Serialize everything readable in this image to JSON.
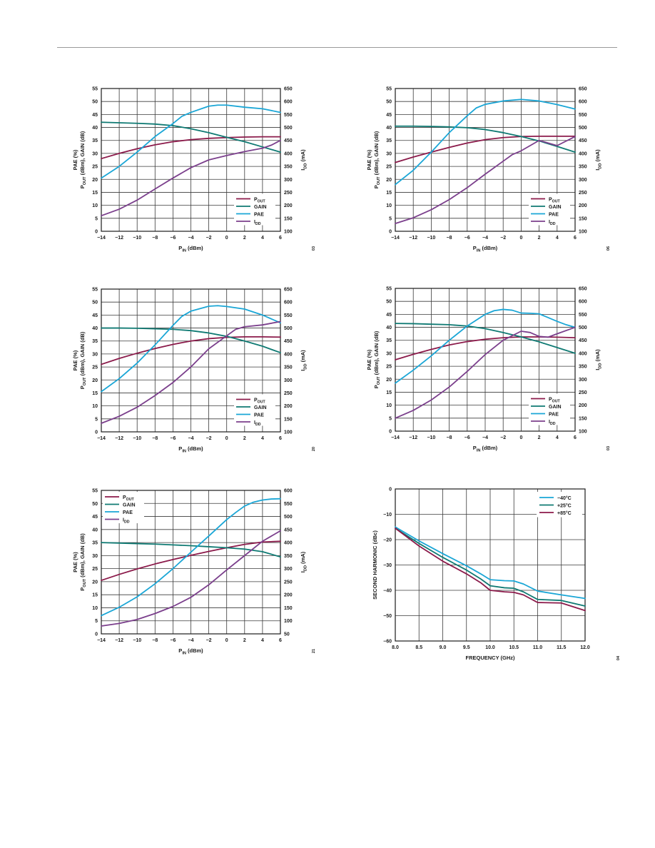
{
  "colors": {
    "pout": "#8b1a4a",
    "gain": "#0f7a73",
    "pae": "#1aa6d6",
    "idd": "#7b3f8c",
    "minus40": "#1aa6d6",
    "plus25": "#0f7a73",
    "plus85": "#8b1a4a"
  },
  "chart_data": [
    {
      "type": "line",
      "ylabel_left_html": "PAE (%)<br>P<sub>OUT</sub> (dBm), GAIN (dB)",
      "ylabel_right": "IDD (mA)",
      "xlabel": "PIN (dBm)",
      "xlim": [
        -14,
        6
      ],
      "xticks": [
        -14,
        -12,
        -10,
        -8,
        -6,
        -4,
        -2,
        0,
        2,
        4,
        6
      ],
      "ylim_left": [
        0,
        55
      ],
      "yticks_left": [
        0,
        5,
        10,
        15,
        20,
        25,
        30,
        35,
        40,
        45,
        50,
        55
      ],
      "ylim_right": [
        100,
        650
      ],
      "yticks_right": [
        100,
        150,
        200,
        250,
        300,
        350,
        400,
        450,
        500,
        550,
        600,
        650
      ],
      "legend": {
        "position": "bottom-right",
        "entries": [
          "POUT",
          "GAIN",
          "PAE",
          "IDD"
        ]
      },
      "side_label": "03",
      "series": [
        {
          "name": "POUT",
          "axis": "left",
          "color": "pout",
          "x": [
            -14,
            -12,
            -10,
            -8,
            -6,
            -4,
            -2,
            0,
            2,
            4,
            6
          ],
          "y": [
            28,
            30,
            31.8,
            33.3,
            34.5,
            35.3,
            35.8,
            36.1,
            36.3,
            36.4,
            36.4
          ]
        },
        {
          "name": "GAIN",
          "axis": "left",
          "color": "gain",
          "x": [
            -14,
            -12,
            -10,
            -8,
            -6,
            -4,
            -2,
            0,
            2,
            4,
            6
          ],
          "y": [
            42,
            41.8,
            41.6,
            41.3,
            40.7,
            39.5,
            38,
            36.2,
            34.5,
            32.5,
            30.5
          ]
        },
        {
          "name": "PAE",
          "axis": "left",
          "color": "pae",
          "x": [
            -14,
            -12,
            -10,
            -8,
            -6,
            -5,
            -4,
            -2,
            -1,
            0,
            2,
            4,
            6
          ],
          "y": [
            20.5,
            25,
            30.5,
            36.5,
            41.5,
            44.3,
            45.8,
            48.2,
            48.6,
            48.6,
            47.8,
            47.2,
            45.8
          ]
        },
        {
          "name": "IDD",
          "axis": "right",
          "color": "idd",
          "x": [
            -14,
            -12,
            -10,
            -8,
            -6,
            -4,
            -2,
            0,
            2,
            4,
            5,
            6
          ],
          "y": [
            160,
            185,
            220,
            263,
            305,
            345,
            375,
            392,
            407,
            420,
            432,
            450
          ]
        }
      ]
    },
    {
      "type": "line",
      "ylabel_left_html": "PAE (%)<br>P<sub>OUT</sub> (dBm), GAIN (dB)",
      "ylabel_right": "IDD (mA)",
      "xlabel": "PIN (dBm)",
      "xlim": [
        -14,
        6
      ],
      "xticks": [
        -14,
        -12,
        -10,
        -8,
        -6,
        -4,
        -2,
        0,
        2,
        4,
        6
      ],
      "ylim_left": [
        0,
        55
      ],
      "yticks_left": [
        0,
        5,
        10,
        15,
        20,
        25,
        30,
        35,
        40,
        45,
        50,
        55
      ],
      "ylim_right": [
        100,
        650
      ],
      "yticks_right": [
        100,
        150,
        200,
        250,
        300,
        350,
        400,
        450,
        500,
        550,
        600,
        650
      ],
      "legend": {
        "position": "bottom-right",
        "entries": [
          "POUT",
          "GAIN",
          "PAE",
          "IDD"
        ]
      },
      "side_label": "06",
      "series": [
        {
          "name": "POUT",
          "axis": "left",
          "color": "pout",
          "x": [
            -14,
            -12,
            -10,
            -8,
            -6,
            -4,
            -2,
            0,
            2,
            4,
            6
          ],
          "y": [
            26.5,
            28.6,
            30.5,
            32.3,
            34,
            35.3,
            36.1,
            36.5,
            36.6,
            36.6,
            36.6
          ]
        },
        {
          "name": "GAIN",
          "axis": "left",
          "color": "gain",
          "x": [
            -14,
            -12,
            -10,
            -8,
            -6,
            -4,
            -2,
            0,
            2,
            4,
            6
          ],
          "y": [
            40.5,
            40.5,
            40.4,
            40.2,
            39.9,
            39.2,
            38,
            36.5,
            34.8,
            32.7,
            30.5
          ]
        },
        {
          "name": "PAE",
          "axis": "left",
          "color": "pae",
          "x": [
            -14,
            -12,
            -10,
            -8,
            -6,
            -5,
            -4,
            -2,
            0,
            2,
            4,
            6
          ],
          "y": [
            18,
            23.5,
            30.5,
            38,
            44.5,
            47.5,
            48.9,
            50.2,
            50.8,
            50.2,
            48.8,
            47.1
          ]
        },
        {
          "name": "IDD",
          "axis": "right",
          "color": "idd",
          "x": [
            -14,
            -12,
            -10,
            -8,
            -6,
            -4,
            -2,
            -1,
            0,
            2,
            4,
            6
          ],
          "y": [
            130,
            152,
            183,
            222,
            268,
            320,
            370,
            395,
            410,
            450,
            430,
            465
          ]
        }
      ]
    },
    {
      "type": "line",
      "ylabel_left_html": "PAE (%)<br>P<sub>OUT</sub> (dBm), GAIN (dB)",
      "ylabel_right": "IDD (mA)",
      "xlabel": "PIN (dBm)",
      "xlim": [
        -14,
        6
      ],
      "xticks": [
        -14,
        -12,
        -10,
        -8,
        -6,
        -4,
        -2,
        0,
        2,
        4,
        6
      ],
      "ylim_left": [
        0,
        55
      ],
      "yticks_left": [
        0,
        5,
        10,
        15,
        20,
        25,
        30,
        35,
        40,
        45,
        50,
        55
      ],
      "ylim_right": [
        100,
        650
      ],
      "yticks_right": [
        100,
        150,
        200,
        250,
        300,
        350,
        400,
        450,
        500,
        550,
        600,
        650
      ],
      "legend": {
        "position": "bottom-right",
        "entries": [
          "POUT",
          "GAIN",
          "PAE",
          "IDD"
        ]
      },
      "side_label": "20",
      "series": [
        {
          "name": "POUT",
          "axis": "left",
          "color": "pout",
          "x": [
            -14,
            -12,
            -10,
            -8,
            -6,
            -4,
            -2,
            0,
            2,
            4,
            6
          ],
          "y": [
            26,
            28.3,
            30.3,
            32.1,
            33.7,
            35,
            35.9,
            36.4,
            36.6,
            36.6,
            36.5
          ]
        },
        {
          "name": "GAIN",
          "axis": "left",
          "color": "gain",
          "x": [
            -14,
            -12,
            -10,
            -8,
            -6,
            -4,
            -2,
            0,
            2,
            4,
            6
          ],
          "y": [
            40,
            40,
            39.9,
            39.7,
            39.5,
            39,
            38.1,
            36.8,
            35,
            33,
            30.5
          ]
        },
        {
          "name": "PAE",
          "axis": "left",
          "color": "pae",
          "x": [
            -14,
            -12,
            -10,
            -8,
            -6,
            -5,
            -4,
            -2,
            -1,
            0,
            2,
            4,
            6
          ],
          "y": [
            15.5,
            20.5,
            26.5,
            33.5,
            41,
            44.5,
            46.5,
            48.4,
            48.6,
            48.3,
            47.3,
            45,
            42
          ]
        },
        {
          "name": "IDD",
          "axis": "right",
          "color": "idd",
          "x": [
            -14,
            -12,
            -10,
            -8,
            -6,
            -4,
            -2,
            0,
            1,
            2,
            4,
            6
          ],
          "y": [
            133,
            160,
            195,
            240,
            290,
            350,
            420,
            470,
            495,
            505,
            512,
            525
          ]
        }
      ]
    },
    {
      "type": "line",
      "ylabel_left_html": "PAE (%)<br>P<sub>OUT</sub> (dBm), GAIN (dB)",
      "ylabel_right": "IDD (mA)",
      "xlabel": "PIN (dBm)",
      "xlim": [
        -14,
        6
      ],
      "xticks": [
        -14,
        -12,
        -10,
        -8,
        -6,
        -4,
        -2,
        0,
        2,
        4,
        6
      ],
      "ylim_left": [
        0,
        55
      ],
      "yticks_left": [
        0,
        5,
        10,
        15,
        20,
        25,
        30,
        35,
        40,
        45,
        50,
        55
      ],
      "ylim_right": [
        100,
        650
      ],
      "yticks_right": [
        100,
        150,
        200,
        250,
        300,
        350,
        400,
        450,
        500,
        550,
        600,
        650
      ],
      "legend": {
        "position": "bottom-right",
        "entries": [
          "POUT",
          "GAIN",
          "PAE",
          "IDD"
        ]
      },
      "side_label": "03",
      "series": [
        {
          "name": "POUT",
          "axis": "left",
          "color": "pout",
          "x": [
            -14,
            -12,
            -10,
            -8,
            -6,
            -4,
            -2,
            0,
            2,
            4,
            6
          ],
          "y": [
            27.5,
            29.6,
            31.5,
            33.2,
            34.5,
            35.4,
            36,
            36.3,
            36.3,
            36.2,
            36
          ]
        },
        {
          "name": "GAIN",
          "axis": "left",
          "color": "gain",
          "x": [
            -14,
            -12,
            -10,
            -8,
            -6,
            -4,
            -2,
            0,
            2,
            4,
            6
          ],
          "y": [
            41.5,
            41.4,
            41.2,
            41,
            40.5,
            39.5,
            38,
            36.3,
            34.4,
            32.2,
            30
          ]
        },
        {
          "name": "PAE",
          "axis": "left",
          "color": "pae",
          "x": [
            -14,
            -12,
            -10,
            -8,
            -6,
            -4,
            -3,
            -2,
            -1,
            0,
            1,
            2,
            4,
            5,
            6
          ],
          "y": [
            18.5,
            23.5,
            29,
            35,
            40.5,
            45,
            46.4,
            46.9,
            46.6,
            45.5,
            45.4,
            45.2,
            42.3,
            41,
            40
          ]
        },
        {
          "name": "IDD",
          "axis": "right",
          "color": "idd",
          "x": [
            -14,
            -12,
            -10,
            -8,
            -6,
            -4,
            -2,
            0,
            1,
            2,
            3,
            4,
            6
          ],
          "y": [
            150,
            180,
            220,
            270,
            330,
            395,
            450,
            485,
            480,
            465,
            462,
            475,
            500
          ]
        }
      ]
    },
    {
      "type": "line",
      "ylabel_left_html": "PAE (%)<br>P<sub>OUT</sub> (dBm), GAIN (dB)",
      "ylabel_right": "IDD (mA)",
      "xlabel": "PIN (dBm)",
      "xlim": [
        -14,
        6
      ],
      "xticks": [
        -14,
        -12,
        -10,
        -8,
        -6,
        -4,
        -2,
        0,
        2,
        4,
        6
      ],
      "ylim_left": [
        0,
        55
      ],
      "yticks_left": [
        0,
        5,
        10,
        15,
        20,
        25,
        30,
        35,
        40,
        45,
        50,
        55
      ],
      "ylim_right": [
        50,
        600
      ],
      "yticks_right": [
        50,
        100,
        150,
        200,
        250,
        300,
        350,
        400,
        450,
        500,
        550,
        600
      ],
      "legend": {
        "position": "top-left",
        "entries": [
          "POUT",
          "GAIN",
          "PAE",
          "IDD"
        ]
      },
      "side_label": "21",
      "series": [
        {
          "name": "POUT",
          "axis": "left",
          "color": "pout",
          "x": [
            -14,
            -12,
            -10,
            -8,
            -6,
            -4,
            -2,
            0,
            2,
            4,
            6
          ],
          "y": [
            20.5,
            22.8,
            24.9,
            26.8,
            28.5,
            30.1,
            31.6,
            33,
            34.3,
            35.2,
            35.5
          ]
        },
        {
          "name": "GAIN",
          "axis": "left",
          "color": "gain",
          "x": [
            -14,
            -12,
            -10,
            -8,
            -6,
            -4,
            -2,
            0,
            2,
            4,
            6
          ],
          "y": [
            35,
            34.8,
            34.6,
            34.4,
            34.1,
            33.8,
            33.4,
            33,
            32.5,
            31.5,
            29.5
          ]
        },
        {
          "name": "PAE",
          "axis": "left",
          "color": "pae",
          "x": [
            -14,
            -12,
            -10,
            -8,
            -6,
            -4,
            -2,
            0,
            1,
            2,
            3,
            4,
            5,
            6
          ],
          "y": [
            7,
            10.2,
            14.2,
            19.2,
            25,
            31.3,
            37.5,
            43.8,
            46.5,
            49,
            50.5,
            51.3,
            51.7,
            51.8
          ]
        },
        {
          "name": "IDD",
          "axis": "right",
          "color": "idd",
          "x": [
            -14,
            -12,
            -10,
            -8,
            -6,
            -4,
            -2,
            0,
            2,
            4,
            5,
            6
          ],
          "y": [
            80,
            90,
            105,
            128,
            155,
            190,
            238,
            295,
            350,
            405,
            425,
            445
          ]
        }
      ]
    },
    {
      "type": "line",
      "ylabel_left": "SECOND HARMONIC (dBc)",
      "xlabel": "FREQUENCY (GHz)",
      "xlim": [
        8.0,
        12.0
      ],
      "xticks": [
        "8.0",
        "8.5",
        "9.0",
        "9.5",
        "10.0",
        "10.5",
        "11.0",
        "11.5",
        "12.0"
      ],
      "ylim_left": [
        -60,
        0
      ],
      "yticks_left": [
        -60,
        -50,
        -40,
        -30,
        -20,
        -10,
        0
      ],
      "legend": {
        "position": "top-right",
        "entries": [
          "−40°C",
          "+25°C",
          "+85°C"
        ]
      },
      "side_label": "04",
      "series": [
        {
          "name": "−40°C",
          "axis": "left",
          "color": "minus40",
          "x": [
            8.0,
            8.5,
            9.0,
            9.5,
            9.8,
            10.0,
            10.3,
            10.5,
            10.7,
            11.0,
            11.5,
            12.0
          ],
          "y": [
            -15,
            -20.5,
            -25.5,
            -30.3,
            -33.5,
            -35.8,
            -36.2,
            -36.3,
            -37.5,
            -40.3,
            -41.8,
            -43.2
          ]
        },
        {
          "name": "+25°C",
          "axis": "left",
          "color": "plus25",
          "x": [
            8.0,
            8.5,
            9.0,
            9.5,
            9.8,
            10.0,
            10.3,
            10.5,
            10.7,
            11.0,
            11.5,
            12.0
          ],
          "y": [
            -15.5,
            -21.5,
            -27,
            -32,
            -35.5,
            -38.2,
            -39,
            -39.2,
            -40.6,
            -43.6,
            -44,
            -46.2
          ]
        },
        {
          "name": "+85°C",
          "axis": "left",
          "color": "plus85",
          "x": [
            8.0,
            8.5,
            9.0,
            9.5,
            9.8,
            10.0,
            10.3,
            10.5,
            10.7,
            11.0,
            11.5,
            12.0
          ],
          "y": [
            -15.5,
            -22.5,
            -28.5,
            -33.5,
            -37,
            -40,
            -40.6,
            -40.8,
            -41.8,
            -44.8,
            -45,
            -48
          ]
        }
      ]
    }
  ]
}
